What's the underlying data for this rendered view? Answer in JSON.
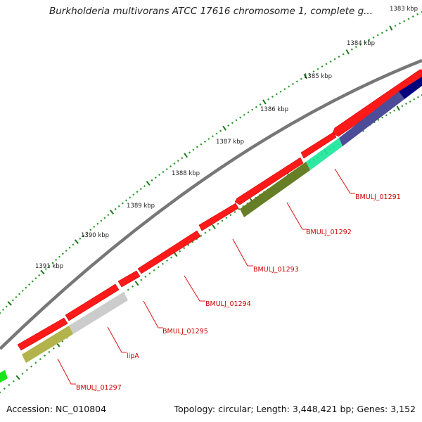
{
  "title": "Burkholderia multivorans ATCC 17616 chromosome 1, complete g...",
  "footer": {
    "accession": "Accession: NC_010804",
    "summary": "Topology: circular; Length: 3,448,421 bp; Genes: 3,152"
  },
  "ticks": [
    "1383 kbp",
    "1384 kbp",
    "1385 kbp",
    "1386 kbp",
    "1387 kbp",
    "1388 kbp",
    "1389 kbp",
    "1390 kbp",
    "1391 kbp"
  ],
  "genes": [
    {
      "label": "BMULJ_01291"
    },
    {
      "label": "BMULJ_01292"
    },
    {
      "label": "BMULJ_01293"
    },
    {
      "label": "BMULJ_01294"
    },
    {
      "label": "BMULJ_01295"
    },
    {
      "label": "lipA"
    },
    {
      "label": "BMULJ_01297"
    }
  ],
  "colors": {
    "backbone": "#7f7f7f",
    "cds": "#ff0000",
    "label": "#cc0000",
    "tick_major": "#1a7a1a",
    "tick_minor": "#2a9a2a",
    "navy": "#00007f",
    "slate": "#4c4c99",
    "aqua": "#19e699",
    "olive": "#667f26",
    "grey": "#cccccc",
    "khaki": "#b3b34c",
    "green": "#19e619"
  }
}
